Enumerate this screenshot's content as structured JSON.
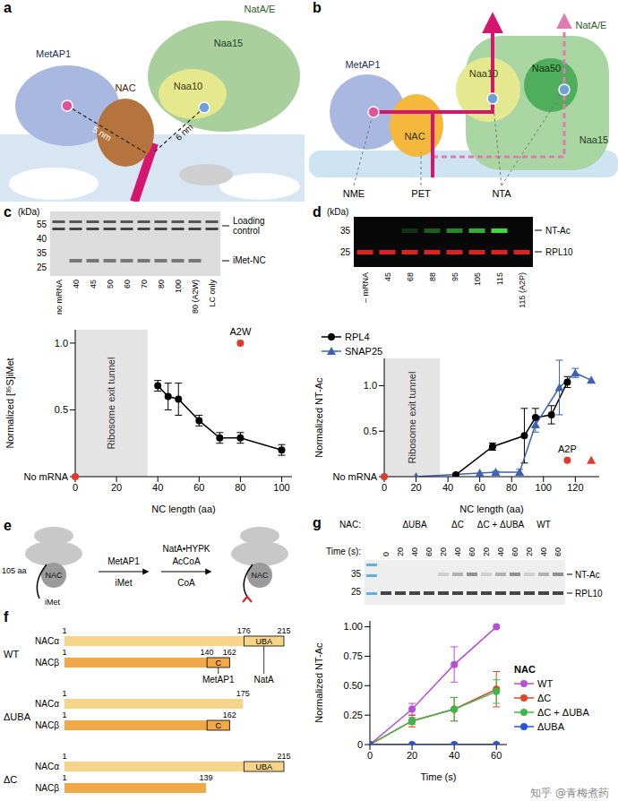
{
  "chart_data": [
    {
      "type": "line",
      "x_label": "NC length (aa)",
      "y_label": "Normalized [³⁵S]iMet",
      "xlim": [
        0,
        105
      ],
      "ylim": [
        0,
        1.1
      ],
      "xticks": [
        0,
        20,
        40,
        60,
        80,
        100
      ],
      "yticks": [
        {
          "value": 0,
          "label": "No mRNA"
        },
        0.5,
        {
          "value": 1,
          "label": "1.0"
        }
      ],
      "shaded_region": {
        "x": [
          0,
          35
        ],
        "label": "Ribosome exit tunnel"
      },
      "series": [
        {
          "color": "#000000",
          "marker": "circle",
          "x": [
            40,
            45,
            50,
            60,
            70,
            80,
            100
          ],
          "values": [
            0.68,
            0.6,
            0.58,
            0.42,
            0.29,
            0.29,
            0.2
          ],
          "errors": [
            0.04,
            0.1,
            0.12,
            0.04,
            0.04,
            0.04,
            0.04
          ]
        }
      ],
      "annotations": [
        {
          "x": 0,
          "y": 0,
          "color": "#e3392b",
          "marker": "circle"
        },
        {
          "x": 80,
          "y": 1.0,
          "color": "#e3392b",
          "marker": "circle",
          "label": "A2W"
        }
      ]
    },
    {
      "type": "line",
      "x_label": "NC length (aa)",
      "y_label": "Normalized NT-Ac",
      "xlim": [
        0,
        135
      ],
      "ylim": [
        0,
        1.3
      ],
      "xticks": [
        0,
        20,
        40,
        60,
        80,
        100,
        120
      ],
      "yticks": [
        {
          "value": 0,
          "label": "No mRNA"
        },
        0.5,
        {
          "value": 1,
          "label": "1.0"
        }
      ],
      "legend": "top right",
      "shaded_region": {
        "x": [
          0,
          35
        ],
        "label": "Ribosome exit tunnel"
      },
      "series": [
        {
          "name": "RPL4",
          "color": "#000000",
          "marker": "circle",
          "x": [
            45,
            68,
            88,
            95,
            105,
            115
          ],
          "values": [
            0.02,
            0.33,
            0.45,
            0.65,
            0.68,
            1.04
          ],
          "errors": [
            0.01,
            0.04,
            0.3,
            0.1,
            0.1,
            0.06
          ]
        },
        {
          "name": "SNAP25",
          "color": "#3d62b3",
          "marker": "triangle",
          "x": [
            20,
            60,
            70,
            85,
            95,
            110,
            120,
            130
          ],
          "values": [
            0,
            0.04,
            0.05,
            0.05,
            0.57,
            0.98,
            1.14,
            1.06
          ],
          "errors": [
            0,
            0,
            0.01,
            0.03,
            0.08,
            0.3,
            0.05,
            0
          ]
        }
      ],
      "annotations": [
        {
          "x": 0,
          "y": 0,
          "color": "#e3392b",
          "marker": "circle"
        },
        {
          "x": 115,
          "y": 0.18,
          "color": "#e3392b",
          "marker": "circle",
          "label": "A2P"
        },
        {
          "x": 130,
          "y": 0.18,
          "color": "#e3392b",
          "marker": "triangle"
        }
      ]
    },
    {
      "type": "line",
      "x_label": "Time (s)",
      "y_label": "Normalized NT-Ac",
      "xlim": [
        0,
        65
      ],
      "ylim": [
        0,
        1.05
      ],
      "xticks": [
        0,
        20,
        40,
        60
      ],
      "yticks": [
        0,
        0.25,
        {
          "value": 0.5,
          "label": "0.50"
        },
        0.75,
        {
          "value": 1,
          "label": "1.00"
        }
      ],
      "legend": "right",
      "legend_title": "NAC",
      "series": [
        {
          "name": "WT",
          "color": "#b84fd6",
          "marker": "circle",
          "x": [
            0,
            20,
            40,
            60
          ],
          "values": [
            0,
            0.3,
            0.68,
            1.0
          ],
          "errors": [
            0,
            0.05,
            0.15,
            0
          ]
        },
        {
          "name": "ΔC",
          "color": "#e0452b",
          "marker": "circle",
          "x": [
            0,
            20,
            40,
            60
          ],
          "values": [
            0,
            0.2,
            0.3,
            0.47
          ],
          "errors": [
            0,
            0.05,
            0.1,
            0.15
          ]
        },
        {
          "name": "ΔC + ΔUBA",
          "color": "#3cb84a",
          "marker": "circle",
          "x": [
            0,
            20,
            40,
            60
          ],
          "values": [
            0,
            0.2,
            0.3,
            0.45
          ],
          "errors": [
            0,
            0.03,
            0.1,
            0.1
          ]
        },
        {
          "name": "ΔUBA",
          "color": "#2855d8",
          "marker": "circle",
          "x": [
            0,
            20,
            40,
            60
          ],
          "values": [
            0,
            0,
            0,
            0
          ],
          "errors": [
            0,
            0,
            0,
            0
          ]
        }
      ]
    }
  ],
  "panels": {
    "a": {
      "letter": "a",
      "labels": {
        "metap1": "MetAP1",
        "nac": "NAC",
        "nata_e": "NatA/E",
        "naa15": "Naa15",
        "naa10": "Naa10"
      },
      "distances": [
        "5 nm",
        "6 nm"
      ]
    },
    "b": {
      "letter": "b",
      "labels": {
        "metap1": "MetAP1",
        "nac": "NAC",
        "naa10": "Naa10",
        "naa50": "Naa50",
        "naa15": "Naa15",
        "nata_e": "NatA/E"
      },
      "activities": [
        "NME",
        "PET",
        "NTA"
      ]
    },
    "c_gel": {
      "letter": "c",
      "unit": "(kDa)",
      "markers": [
        55,
        40,
        35,
        25
      ],
      "lanes": [
        "no mRNA",
        "40",
        "45",
        "50",
        "60",
        "70",
        "80",
        "100",
        "80 (A2W)",
        "LC only"
      ],
      "bands": [
        "Loading control",
        "iMet-NC"
      ]
    },
    "d_gel": {
      "letter": "d",
      "unit": "(kDa)",
      "markers": [
        35,
        25
      ],
      "lanes": [
        "– mRNA",
        "45",
        "68",
        "88",
        "95",
        "105",
        "115",
        "115 (A2P)"
      ],
      "bands": [
        "NT-Ac",
        "RPL10"
      ]
    },
    "e": {
      "letter": "e",
      "complex": "NAC",
      "chain_length": "105 aa",
      "start_residue": "iMet",
      "enzymes": [
        "MetAP1",
        "NatA•HYPK"
      ],
      "cofactor": "AcCoA",
      "released": [
        "iMet",
        "CoA"
      ]
    },
    "f": {
      "letter": "f",
      "constructs": [
        {
          "name": "WT",
          "chains": [
            {
              "name": "NACα",
              "end": 215,
              "domain": {
                "name": "UBA",
                "start": 176
              },
              "numbers": [
                1,
                176,
                215
              ],
              "partner": "NatA"
            },
            {
              "name": "NACβ",
              "end": 162,
              "domain": {
                "name": "C",
                "start": 140
              },
              "numbers": [
                1,
                140,
                162
              ],
              "partner": "MetAP1"
            }
          ]
        },
        {
          "name": "ΔUBA",
          "chains": [
            {
              "name": "NACα",
              "end": 175,
              "numbers": [
                1,
                175
              ]
            },
            {
              "name": "NACβ",
              "end": 162,
              "domain": {
                "name": "C",
                "start": 140
              },
              "numbers": [
                1,
                162
              ]
            }
          ]
        },
        {
          "name": "ΔC",
          "chains": [
            {
              "name": "NACα",
              "end": 215,
              "domain": {
                "name": "UBA",
                "start": 176
              },
              "numbers": [
                1,
                215
              ]
            },
            {
              "name": "NACβ",
              "end": 139,
              "numbers": [
                1,
                139
              ]
            }
          ]
        }
      ]
    },
    "g_gel": {
      "letter": "g",
      "group_label": "NAC:",
      "time_label": "Time (s):",
      "zero_time": 0,
      "groups": [
        {
          "name": "ΔUBA",
          "times": [
            20,
            40,
            60
          ]
        },
        {
          "name": "ΔC",
          "times": [
            20,
            40,
            60
          ]
        },
        {
          "name": "ΔC + ΔUBA",
          "times": [
            20,
            40,
            60
          ]
        },
        {
          "name": "WT",
          "times": [
            20,
            40,
            60
          ]
        }
      ],
      "markers": [
        35,
        25
      ],
      "bands": [
        "NT-Ac",
        "RPL10"
      ]
    }
  },
  "watermark": "知乎 @青梅煮药"
}
